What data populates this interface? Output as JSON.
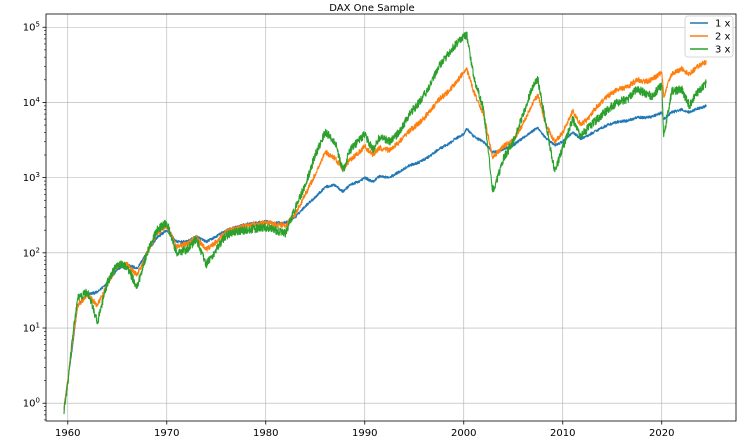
{
  "chart_data": {
    "type": "line",
    "title": "DAX One Sample",
    "xlabel": "",
    "ylabel": "",
    "yscale": "log",
    "xlim": [
      1957.8,
      2027.5
    ],
    "ylim": [
      0.58,
      150000
    ],
    "grid": true,
    "legend_position": "top-right",
    "x_ticks": [
      1960,
      1970,
      1980,
      1990,
      2000,
      2010,
      2020
    ],
    "x_tick_labels": [
      "1960",
      "1970",
      "1980",
      "1990",
      "2000",
      "2010",
      "2020"
    ],
    "y_ticks": [
      1,
      10,
      100,
      1000,
      10000,
      100000
    ],
    "y_tick_labels": [
      {
        "base": "10",
        "exp": "0"
      },
      {
        "base": "10",
        "exp": "1"
      },
      {
        "base": "10",
        "exp": "2"
      },
      {
        "base": "10",
        "exp": "3"
      },
      {
        "base": "10",
        "exp": "4"
      },
      {
        "base": "10",
        "exp": "5"
      }
    ],
    "series": [
      {
        "name": "1 x",
        "color": "#1f77b4",
        "x": [
          1959.6,
          1960.0,
          1960.5,
          1961.0,
          1962.0,
          1963.0,
          1964.0,
          1965.0,
          1966.0,
          1967.0,
          1968.0,
          1969.0,
          1970.0,
          1971.0,
          1972.0,
          1973.0,
          1974.0,
          1975.0,
          1976.0,
          1977.0,
          1978.0,
          1979.0,
          1980.0,
          1981.0,
          1982.0,
          1983.0,
          1984.0,
          1985.0,
          1986.0,
          1987.0,
          1987.8,
          1988.5,
          1989.5,
          1990.0,
          1990.8,
          1991.5,
          1992.5,
          1993.5,
          1994.5,
          1995.5,
          1996.5,
          1997.5,
          1998.5,
          1999.0,
          2000.0,
          2000.3,
          2001.0,
          2002.0,
          2002.9,
          2003.2,
          2004.0,
          2005.0,
          2006.0,
          2007.0,
          2007.5,
          2008.3,
          2009.2,
          2010.0,
          2011.0,
          2011.8,
          2012.5,
          2013.5,
          2014.5,
          2015.5,
          2016.5,
          2017.5,
          2018.5,
          2019.0,
          2020.0,
          2020.2,
          2021.0,
          2022.0,
          2022.8,
          2023.5,
          2024.5
        ],
        "values": [
          0.85,
          2,
          6,
          20,
          28,
          30,
          40,
          60,
          70,
          62,
          100,
          160,
          200,
          140,
          140,
          165,
          140,
          165,
          200,
          220,
          240,
          250,
          260,
          250,
          250,
          300,
          420,
          550,
          750,
          800,
          650,
          800,
          900,
          1000,
          880,
          1050,
          1000,
          1200,
          1450,
          1600,
          1900,
          2400,
          2800,
          3200,
          3800,
          4500,
          3500,
          3000,
          2200,
          2200,
          2400,
          2700,
          3400,
          4200,
          4600,
          3300,
          2700,
          3000,
          4000,
          3300,
          3600,
          4300,
          5000,
          5500,
          5700,
          6300,
          6300,
          6500,
          7300,
          6000,
          7400,
          8000,
          7400,
          8200,
          9000
        ]
      },
      {
        "name": "2 x",
        "color": "#ff7f0e",
        "x": [
          1959.6,
          1960.0,
          1960.5,
          1961.0,
          1962.0,
          1963.0,
          1964.0,
          1965.0,
          1966.0,
          1967.0,
          1968.0,
          1969.0,
          1970.0,
          1971.0,
          1972.0,
          1973.0,
          1974.0,
          1975.0,
          1976.0,
          1977.0,
          1978.0,
          1979.0,
          1980.0,
          1981.0,
          1982.0,
          1983.0,
          1984.0,
          1985.0,
          1986.0,
          1987.0,
          1987.8,
          1988.5,
          1989.5,
          1990.0,
          1990.8,
          1991.5,
          1992.5,
          1993.5,
          1994.5,
          1995.5,
          1996.5,
          1997.5,
          1998.5,
          1999.0,
          2000.0,
          2000.3,
          2001.0,
          2002.0,
          2002.9,
          2003.2,
          2004.0,
          2005.0,
          2006.0,
          2007.0,
          2007.5,
          2008.3,
          2009.2,
          2010.0,
          2011.0,
          2011.8,
          2012.5,
          2013.5,
          2014.5,
          2015.5,
          2016.5,
          2017.5,
          2018.5,
          2019.0,
          2020.0,
          2020.2,
          2021.0,
          2022.0,
          2022.8,
          2023.5,
          2024.5
        ],
        "values": [
          0.8,
          2,
          7,
          20,
          28,
          20,
          38,
          68,
          70,
          50,
          100,
          180,
          230,
          120,
          130,
          160,
          110,
          140,
          190,
          210,
          230,
          240,
          250,
          240,
          230,
          330,
          600,
          1100,
          2200,
          1800,
          1300,
          1700,
          2200,
          2600,
          2000,
          2500,
          2300,
          3000,
          4200,
          5300,
          7400,
          11000,
          14000,
          17000,
          25000,
          28000,
          14000,
          7000,
          1900,
          2000,
          2600,
          3200,
          5200,
          10000,
          12500,
          5000,
          3000,
          4000,
          7800,
          5000,
          6000,
          9000,
          12000,
          15000,
          16000,
          20000,
          19000,
          20000,
          25000,
          12000,
          24000,
          28000,
          24000,
          29000,
          35000
        ]
      },
      {
        "name": "3 x",
        "color": "#2ca02c",
        "x": [
          1959.6,
          1960.0,
          1960.5,
          1961.0,
          1962.0,
          1963.0,
          1964.0,
          1965.0,
          1966.0,
          1967.0,
          1968.0,
          1969.0,
          1970.0,
          1971.0,
          1972.0,
          1973.0,
          1974.0,
          1975.0,
          1976.0,
          1977.0,
          1978.0,
          1979.0,
          1980.0,
          1981.0,
          1982.0,
          1983.0,
          1984.0,
          1985.0,
          1986.0,
          1987.0,
          1987.8,
          1988.5,
          1989.5,
          1990.0,
          1990.8,
          1991.5,
          1992.5,
          1993.5,
          1994.5,
          1995.5,
          1996.5,
          1997.5,
          1998.5,
          1999.0,
          2000.0,
          2000.3,
          2001.0,
          2002.0,
          2002.9,
          2003.2,
          2004.0,
          2005.0,
          2006.0,
          2007.0,
          2007.5,
          2008.3,
          2009.2,
          2010.0,
          2011.0,
          2011.8,
          2012.5,
          2013.5,
          2014.5,
          2015.5,
          2016.5,
          2017.5,
          2018.5,
          2019.0,
          2020.0,
          2020.2,
          2021.0,
          2022.0,
          2022.8,
          2023.5,
          2024.5
        ],
        "values": [
          0.75,
          1.8,
          8,
          25,
          30,
          12,
          40,
          72,
          65,
          35,
          100,
          200,
          250,
          100,
          110,
          150,
          70,
          110,
          170,
          190,
          200,
          210,
          220,
          200,
          180,
          400,
          800,
          2000,
          4000,
          3000,
          1200,
          2300,
          3200,
          3800,
          2300,
          3500,
          3000,
          4000,
          7000,
          10000,
          16000,
          30000,
          45000,
          55000,
          75000,
          80000,
          22000,
          8000,
          700,
          800,
          1800,
          3000,
          7000,
          17000,
          20000,
          5000,
          1200,
          2500,
          6000,
          3500,
          4500,
          6000,
          8000,
          10000,
          11000,
          15000,
          13000,
          12000,
          17000,
          3500,
          14000,
          15000,
          9000,
          13000,
          18000
        ]
      }
    ]
  }
}
